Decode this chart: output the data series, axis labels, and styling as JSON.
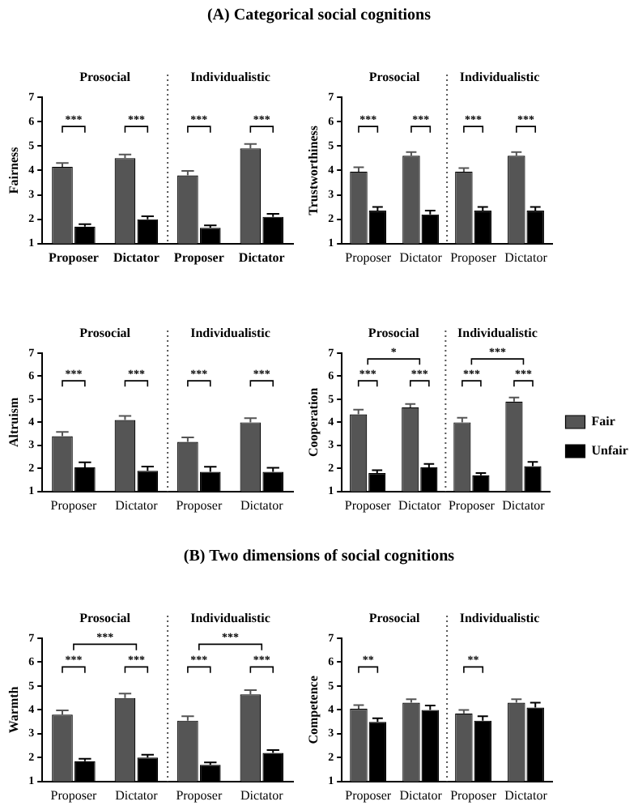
{
  "chart_data": [
    {
      "type": "bar",
      "title": "(A) Categorical social cognitions",
      "ylabel": "Fairness",
      "categories": [
        "Proposer",
        "Dictator",
        "Proposer",
        "Dictator"
      ],
      "ylim": [
        1,
        7
      ],
      "yticks": [
        1,
        2,
        3,
        4,
        5,
        6,
        7
      ],
      "grid": false,
      "legend": false,
      "series": [
        {
          "color": "#555555",
          "values": [
            4.15,
            4.5,
            3.8,
            4.9
          ],
          "errors": [
            0.15,
            0.15,
            0.18,
            0.18
          ]
        },
        {
          "color": "#000000",
          "values": [
            1.7,
            2.0,
            1.65,
            2.1
          ],
          "errors": [
            0.1,
            0.12,
            0.1,
            0.12
          ]
        }
      ],
      "annotations": [
        "Prosocial",
        "Individualistic",
        "***",
        "***",
        "***",
        "***"
      ]
    },
    {
      "type": "bar",
      "ylabel": "Trustworthiness",
      "categories": [
        "Proposer",
        "Dictator",
        "Proposer",
        "Dictator"
      ],
      "ylim": [
        1,
        7
      ],
      "yticks": [
        1,
        2,
        3,
        4,
        5,
        6,
        7
      ],
      "grid": false,
      "legend": false,
      "series": [
        {
          "color": "#555555",
          "values": [
            3.95,
            4.6,
            3.95,
            4.6
          ],
          "errors": [
            0.18,
            0.15,
            0.15,
            0.15
          ]
        },
        {
          "color": "#000000",
          "values": [
            2.35,
            2.2,
            2.35,
            2.35
          ],
          "errors": [
            0.15,
            0.15,
            0.15,
            0.15
          ]
        }
      ],
      "annotations": [
        "Prosocial",
        "Individualistic",
        "***",
        "***",
        "***",
        "***"
      ]
    },
    {
      "type": "bar",
      "ylabel": "Altruism",
      "categories": [
        "Proposer",
        "Dictator",
        "Proposer",
        "Dictator"
      ],
      "ylim": [
        1,
        7
      ],
      "yticks": [
        1,
        2,
        3,
        4,
        5,
        6,
        7
      ],
      "grid": false,
      "legend": false,
      "series": [
        {
          "color": "#555555",
          "values": [
            3.4,
            4.1,
            3.15,
            4.0
          ],
          "errors": [
            0.18,
            0.18,
            0.2,
            0.18
          ]
        },
        {
          "color": "#000000",
          "values": [
            2.05,
            1.9,
            1.85,
            1.85
          ],
          "errors": [
            0.22,
            0.18,
            0.22,
            0.18
          ]
        }
      ],
      "annotations": [
        "Prosocial",
        "Individualistic",
        "***",
        "***",
        "***",
        "***"
      ]
    },
    {
      "type": "bar",
      "ylabel": "Cooperation",
      "categories": [
        "Proposer",
        "Dictator",
        "Proposer",
        "Dictator"
      ],
      "ylim": [
        1,
        7
      ],
      "yticks": [
        1,
        2,
        3,
        4,
        5,
        6,
        7
      ],
      "grid": false,
      "legend": "right",
      "series": [
        {
          "name": "Fair",
          "color": "#555555",
          "values": [
            4.35,
            4.65,
            4.0,
            4.9
          ],
          "errors": [
            0.2,
            0.15,
            0.2,
            0.18
          ]
        },
        {
          "name": "Unfair",
          "color": "#000000",
          "values": [
            1.8,
            2.05,
            1.7,
            2.1
          ],
          "errors": [
            0.12,
            0.15,
            0.1,
            0.18
          ]
        }
      ],
      "annotations": [
        "Prosocial",
        "Individualistic",
        "***",
        "***",
        "***",
        "***",
        "*",
        "***"
      ]
    },
    {
      "type": "bar",
      "title": "(B) Two dimensions of social cognitions",
      "ylabel": "Warmth",
      "categories": [
        "Proposer",
        "Dictator",
        "Proposer",
        "Dictator"
      ],
      "ylim": [
        1,
        7
      ],
      "yticks": [
        1,
        2,
        3,
        4,
        5,
        6,
        7
      ],
      "grid": false,
      "legend": false,
      "series": [
        {
          "color": "#555555",
          "values": [
            3.8,
            4.5,
            3.55,
            4.65
          ],
          "errors": [
            0.18,
            0.18,
            0.18,
            0.18
          ]
        },
        {
          "color": "#000000",
          "values": [
            1.85,
            2.0,
            1.7,
            2.2
          ],
          "errors": [
            0.1,
            0.12,
            0.1,
            0.12
          ]
        }
      ],
      "annotations": [
        "Prosocial",
        "Individualistic",
        "***",
        "***",
        "***",
        "***",
        "***",
        "***"
      ]
    },
    {
      "type": "bar",
      "ylabel": "Competence",
      "categories": [
        "Proposer",
        "Dictator",
        "Proposer",
        "Dictator"
      ],
      "ylim": [
        1,
        7
      ],
      "yticks": [
        1,
        2,
        3,
        4,
        5,
        6,
        7
      ],
      "grid": false,
      "legend": false,
      "series": [
        {
          "color": "#555555",
          "values": [
            4.05,
            4.3,
            3.85,
            4.3
          ],
          "errors": [
            0.15,
            0.15,
            0.15,
            0.15
          ]
        },
        {
          "color": "#000000",
          "values": [
            3.5,
            4.0,
            3.55,
            4.1
          ],
          "errors": [
            0.15,
            0.18,
            0.18,
            0.2
          ]
        }
      ],
      "annotations": [
        "Prosocial",
        "Individualistic",
        "**",
        "**"
      ]
    }
  ]
}
